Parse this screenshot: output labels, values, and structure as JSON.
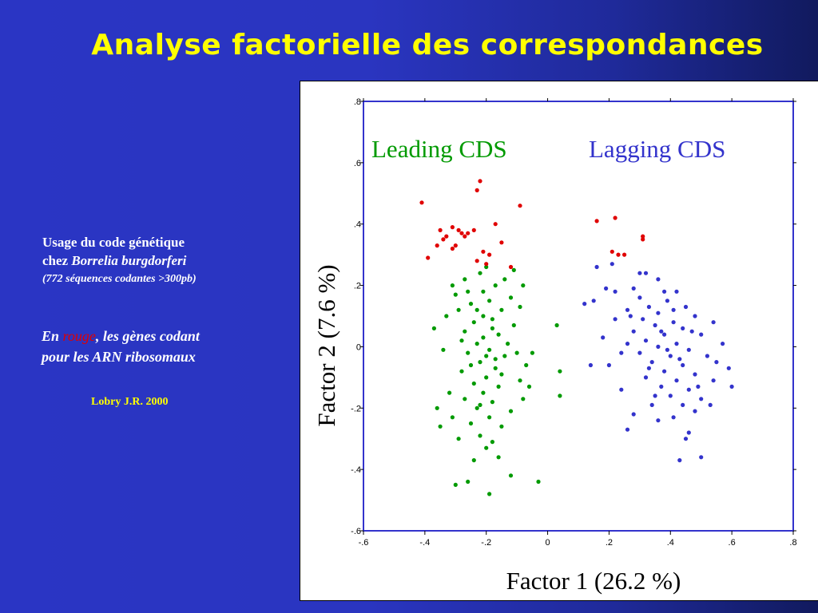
{
  "slide": {
    "title": "Analyse factorielle des correspondances",
    "notes": {
      "line1": "Usage du code génétique",
      "line2_prefix": "chez ",
      "line2_species": "Borrelia burgdorferi",
      "line3": "(772 séquences codantes >300pb)",
      "rna_prefix": "En ",
      "rna_red_word": "rouge",
      "rna_suffix": ", les gènes codant",
      "rna_line2": "pour les ARN ribosomaux",
      "credit": "Lobry J.R. 2000"
    }
  },
  "colors": {
    "leading": "#009a00",
    "lagging": "#3333cc",
    "ribosomal": "#e00000",
    "frame": "#3333cc",
    "title": "#ffff00"
  },
  "chart_data": {
    "type": "scatter",
    "title": "",
    "xlabel": "Factor 1 (26.2 %)",
    "ylabel": "Factor 2 (7.6 %)",
    "xlim": [
      -0.6,
      0.8
    ],
    "ylim": [
      -0.6,
      0.8
    ],
    "x_ticks": [
      -0.6,
      -0.4,
      -0.2,
      0,
      0.2,
      0.4,
      0.6,
      0.8
    ],
    "x_tick_labels": [
      "-.6",
      "-.4",
      "-.2",
      "0",
      ".2",
      ".4",
      ".6",
      ".8"
    ],
    "y_ticks": [
      -0.6,
      -0.4,
      -0.2,
      0,
      0.2,
      0.4,
      0.6,
      0.8
    ],
    "y_tick_labels": [
      "-.6",
      "-.4",
      "-.2",
      "0",
      ".2",
      ".4",
      ".6",
      ".8"
    ],
    "grid": false,
    "annotations": [
      {
        "text": "Leading CDS",
        "color": "#009a00"
      },
      {
        "text": "Lagging CDS",
        "color": "#3333cc"
      }
    ],
    "series": [
      {
        "color": "#009a00",
        "points": [
          [
            -0.2,
            0.26
          ],
          [
            -0.31,
            0.2
          ],
          [
            -0.22,
            0.24
          ],
          [
            -0.17,
            0.2
          ],
          [
            -0.26,
            0.18
          ],
          [
            -0.14,
            0.22
          ],
          [
            -0.25,
            0.14
          ],
          [
            -0.19,
            0.15
          ],
          [
            -0.29,
            0.12
          ],
          [
            -0.21,
            0.1
          ],
          [
            -0.15,
            0.12
          ],
          [
            -0.24,
            0.08
          ],
          [
            -0.18,
            0.06
          ],
          [
            -0.27,
            0.05
          ],
          [
            -0.21,
            0.03
          ],
          [
            -0.16,
            0.04
          ],
          [
            -0.23,
            0.01
          ],
          [
            -0.19,
            -0.01
          ],
          [
            -0.26,
            -0.02
          ],
          [
            -0.14,
            -0.03
          ],
          [
            -0.22,
            -0.05
          ],
          [
            -0.17,
            -0.07
          ],
          [
            -0.28,
            -0.08
          ],
          [
            -0.2,
            -0.1
          ],
          [
            -0.24,
            -0.12
          ],
          [
            -0.16,
            -0.13
          ],
          [
            -0.21,
            -0.15
          ],
          [
            -0.27,
            -0.17
          ],
          [
            -0.18,
            -0.18
          ],
          [
            -0.23,
            -0.2
          ],
          [
            -0.19,
            -0.23
          ],
          [
            -0.25,
            -0.25
          ],
          [
            -0.15,
            -0.26
          ],
          [
            -0.22,
            -0.29
          ],
          [
            -0.18,
            -0.31
          ],
          [
            -0.29,
            -0.3
          ],
          [
            -0.2,
            -0.33
          ],
          [
            -0.12,
            0.16
          ],
          [
            -0.11,
            0.07
          ],
          [
            -0.1,
            -0.02
          ],
          [
            -0.09,
            -0.11
          ],
          [
            -0.12,
            -0.21
          ],
          [
            -0.33,
            0.1
          ],
          [
            -0.34,
            -0.01
          ],
          [
            -0.32,
            -0.15
          ],
          [
            -0.31,
            -0.23
          ],
          [
            -0.09,
            0.13
          ],
          [
            -0.07,
            -0.06
          ],
          [
            -0.08,
            -0.17
          ],
          [
            -0.3,
            -0.45
          ],
          [
            -0.26,
            -0.44
          ],
          [
            -0.19,
            -0.48
          ],
          [
            -0.12,
            -0.42
          ],
          [
            -0.03,
            -0.44
          ],
          [
            -0.24,
            -0.37
          ],
          [
            -0.16,
            -0.36
          ],
          [
            -0.36,
            -0.2
          ],
          [
            -0.05,
            -0.02
          ],
          [
            -0.06,
            -0.13
          ],
          [
            -0.37,
            0.06
          ],
          [
            -0.21,
            0.18
          ],
          [
            -0.17,
            -0.04
          ],
          [
            -0.23,
            0.12
          ],
          [
            -0.18,
            0.09
          ],
          [
            -0.25,
            -0.06
          ],
          [
            -0.2,
            -0.03
          ],
          [
            -0.15,
            -0.09
          ],
          [
            -0.28,
            0.02
          ],
          [
            -0.13,
            0.01
          ],
          [
            -0.22,
            -0.19
          ],
          [
            0.04,
            -0.08
          ],
          [
            0.04,
            -0.16
          ],
          [
            0.03,
            0.07
          ],
          [
            -0.11,
            0.25
          ],
          [
            -0.27,
            0.22
          ],
          [
            -0.3,
            0.17
          ],
          [
            -0.08,
            0.2
          ],
          [
            -0.35,
            -0.26
          ]
        ]
      },
      {
        "color": "#3333cc",
        "points": [
          [
            0.32,
            0.24
          ],
          [
            0.36,
            0.22
          ],
          [
            0.28,
            0.19
          ],
          [
            0.42,
            0.18
          ],
          [
            0.3,
            0.16
          ],
          [
            0.22,
            0.18
          ],
          [
            0.39,
            0.15
          ],
          [
            0.33,
            0.13
          ],
          [
            0.45,
            0.13
          ],
          [
            0.26,
            0.12
          ],
          [
            0.36,
            0.11
          ],
          [
            0.48,
            0.1
          ],
          [
            0.31,
            0.09
          ],
          [
            0.41,
            0.08
          ],
          [
            0.35,
            0.07
          ],
          [
            0.44,
            0.06
          ],
          [
            0.28,
            0.05
          ],
          [
            0.38,
            0.04
          ],
          [
            0.5,
            0.04
          ],
          [
            0.32,
            0.02
          ],
          [
            0.42,
            0.01
          ],
          [
            0.36,
            0.0
          ],
          [
            0.46,
            -0.01
          ],
          [
            0.3,
            -0.02
          ],
          [
            0.4,
            -0.03
          ],
          [
            0.52,
            -0.03
          ],
          [
            0.34,
            -0.05
          ],
          [
            0.44,
            -0.06
          ],
          [
            0.38,
            -0.08
          ],
          [
            0.48,
            -0.09
          ],
          [
            0.32,
            -0.1
          ],
          [
            0.42,
            -0.11
          ],
          [
            0.54,
            -0.11
          ],
          [
            0.37,
            -0.13
          ],
          [
            0.46,
            -0.14
          ],
          [
            0.4,
            -0.16
          ],
          [
            0.5,
            -0.17
          ],
          [
            0.44,
            -0.19
          ],
          [
            0.34,
            -0.19
          ],
          [
            0.48,
            -0.21
          ],
          [
            0.41,
            -0.23
          ],
          [
            0.46,
            -0.28
          ],
          [
            0.36,
            -0.24
          ],
          [
            0.28,
            -0.22
          ],
          [
            0.24,
            -0.14
          ],
          [
            0.2,
            -0.06
          ],
          [
            0.18,
            0.03
          ],
          [
            0.22,
            0.09
          ],
          [
            0.15,
            0.15
          ],
          [
            0.54,
            0.08
          ],
          [
            0.57,
            0.01
          ],
          [
            0.59,
            -0.07
          ],
          [
            0.6,
            -0.13
          ],
          [
            0.53,
            -0.19
          ],
          [
            0.14,
            -0.06
          ],
          [
            0.26,
            -0.27
          ],
          [
            0.5,
            -0.36
          ],
          [
            0.43,
            -0.37
          ],
          [
            0.45,
            -0.3
          ],
          [
            0.26,
            0.01
          ],
          [
            0.24,
            -0.02
          ],
          [
            0.38,
            0.18
          ],
          [
            0.3,
            0.24
          ],
          [
            0.16,
            0.26
          ],
          [
            0.21,
            0.27
          ],
          [
            0.35,
            -0.16
          ],
          [
            0.39,
            -0.01
          ],
          [
            0.47,
            0.05
          ],
          [
            0.43,
            -0.04
          ],
          [
            0.33,
            -0.07
          ],
          [
            0.37,
            0.05
          ],
          [
            0.41,
            0.12
          ],
          [
            0.49,
            -0.13
          ],
          [
            0.55,
            -0.05
          ],
          [
            0.19,
            0.19
          ],
          [
            0.27,
            0.1
          ],
          [
            0.12,
            0.14
          ]
        ]
      },
      {
        "color": "#e00000",
        "points": [
          [
            -0.23,
            0.51
          ],
          [
            -0.22,
            0.54
          ],
          [
            -0.41,
            0.47
          ],
          [
            -0.09,
            0.46
          ],
          [
            -0.35,
            0.38
          ],
          [
            -0.31,
            0.39
          ],
          [
            -0.29,
            0.38
          ],
          [
            -0.26,
            0.37
          ],
          [
            -0.24,
            0.38
          ],
          [
            -0.17,
            0.4
          ],
          [
            -0.34,
            0.35
          ],
          [
            -0.3,
            0.33
          ],
          [
            -0.27,
            0.36
          ],
          [
            -0.36,
            0.33
          ],
          [
            -0.31,
            0.32
          ],
          [
            -0.21,
            0.31
          ],
          [
            -0.15,
            0.34
          ],
          [
            -0.39,
            0.29
          ],
          [
            -0.2,
            0.27
          ],
          [
            -0.19,
            0.3
          ],
          [
            -0.23,
            0.28
          ],
          [
            -0.12,
            0.26
          ],
          [
            -0.28,
            0.37
          ],
          [
            -0.33,
            0.36
          ],
          [
            0.16,
            0.41
          ],
          [
            0.22,
            0.42
          ],
          [
            0.31,
            0.36
          ],
          [
            0.21,
            0.31
          ],
          [
            0.23,
            0.3
          ],
          [
            0.25,
            0.3
          ],
          [
            0.31,
            0.35
          ]
        ]
      }
    ]
  }
}
